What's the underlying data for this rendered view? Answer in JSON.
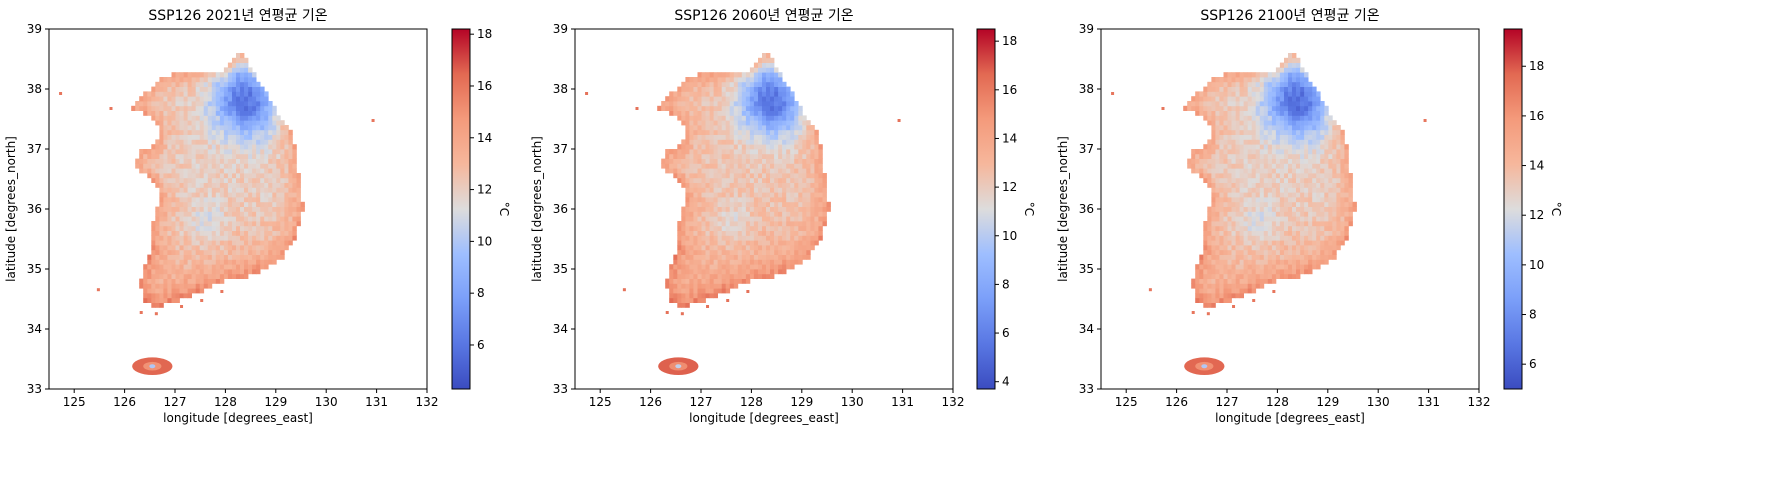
{
  "chart_data": [
    {
      "type": "heatmap",
      "title": "SSP126 2021년 연평균 기온",
      "xlabel": "longitude [degrees_east]",
      "ylabel": "latitude [degrees_north]",
      "xlim": [
        124.5,
        132.0
      ],
      "ylim": [
        33.0,
        39.0
      ],
      "xticks": [
        125,
        126,
        127,
        128,
        129,
        130,
        131,
        132
      ],
      "yticks": [
        33,
        34,
        35,
        36,
        37,
        38,
        39
      ],
      "colorbar": {
        "label": "°C",
        "range": [
          4.3,
          18.2
        ],
        "ticks": [
          6,
          8,
          10,
          12,
          14,
          16,
          18
        ],
        "colormap": "coolwarm"
      },
      "field_summary": {
        "mountain_ne_min": 5.5,
        "inland_mean": 12.0,
        "southern_coast_max": 17.0
      }
    },
    {
      "type": "heatmap",
      "title": "SSP126 2060년 연평균 기온",
      "xlabel": "longitude [degrees_east]",
      "ylabel": "latitude [degrees_north]",
      "xlim": [
        124.5,
        132.0
      ],
      "ylim": [
        33.0,
        39.0
      ],
      "xticks": [
        125,
        126,
        127,
        128,
        129,
        130,
        131,
        132
      ],
      "yticks": [
        33,
        34,
        35,
        36,
        37,
        38,
        39
      ],
      "colorbar": {
        "label": "°C",
        "range": [
          3.7,
          18.5
        ],
        "ticks": [
          4,
          6,
          8,
          10,
          12,
          14,
          16,
          18
        ],
        "colormap": "coolwarm"
      },
      "field_summary": {
        "mountain_ne_min": 5.0,
        "inland_mean": 12.3,
        "southern_coast_max": 17.3
      }
    },
    {
      "type": "heatmap",
      "title": "SSP126 2100년 연평균 기온",
      "xlabel": "longitude [degrees_east]",
      "ylabel": "latitude [degrees_north]",
      "xlim": [
        124.5,
        132.0
      ],
      "ylim": [
        33.0,
        39.0
      ],
      "xticks": [
        125,
        126,
        127,
        128,
        129,
        130,
        131,
        132
      ],
      "yticks": [
        33,
        34,
        35,
        36,
        37,
        38,
        39
      ],
      "colorbar": {
        "label": "°C",
        "range": [
          5.0,
          19.5
        ],
        "ticks": [
          6,
          8,
          10,
          12,
          14,
          16,
          18
        ],
        "colormap": "coolwarm"
      },
      "field_summary": {
        "mountain_ne_min": 6.0,
        "inland_mean": 13.0,
        "southern_coast_max": 18.2
      }
    }
  ]
}
